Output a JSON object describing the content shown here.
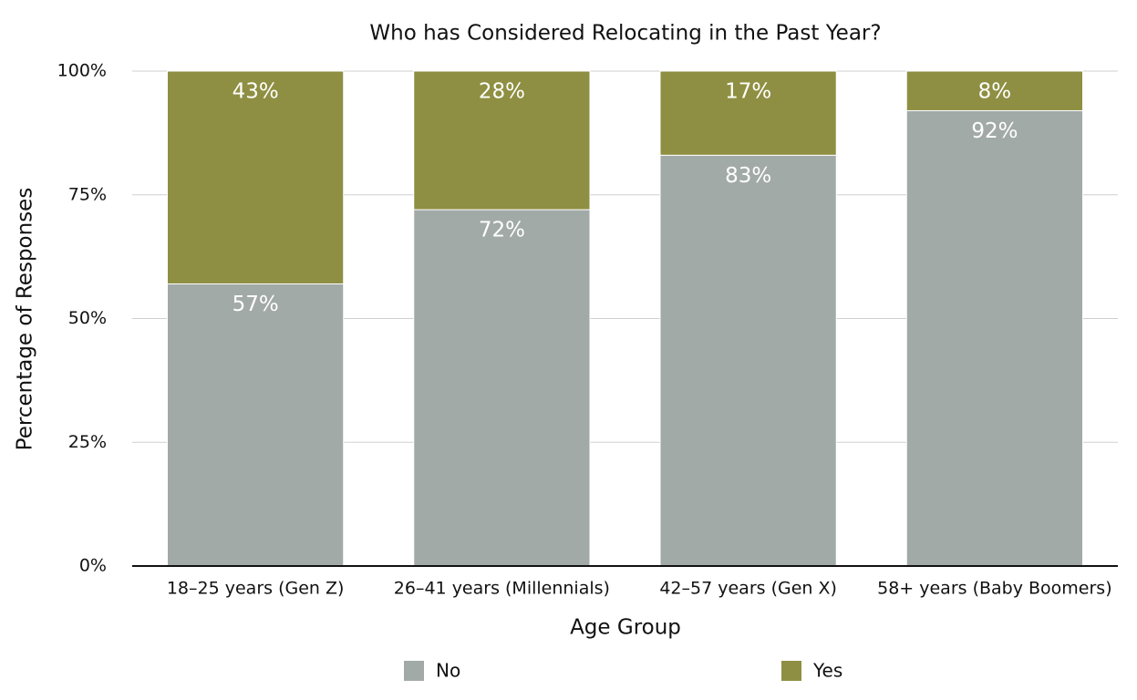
{
  "chart_data": {
    "type": "stacked_bar",
    "title": "Who has Considered Relocating in the Past Year?",
    "x_label": "Age Group",
    "y_label": "Percentage of Responses",
    "categories": [
      "18–25 years (Gen Z)",
      "26–41 years (Millennials)",
      "42–57 years (Gen X)",
      "58+ years (Baby Boomers)"
    ],
    "series": [
      {
        "name": "No",
        "color": "#a2aaa8",
        "values": [
          57,
          72,
          83,
          92
        ],
        "value_labels": [
          "57%",
          "72%",
          "83%",
          "92%"
        ]
      },
      {
        "name": "Yes",
        "color": "#8e8f42",
        "values": [
          43,
          28,
          17,
          8
        ],
        "value_labels": [
          "43%",
          "28%",
          "17%",
          "8%"
        ]
      }
    ],
    "ylim": [
      0,
      100
    ],
    "yticks": [
      {
        "value": 0,
        "label": "0%"
      },
      {
        "value": 25,
        "label": "25%"
      },
      {
        "value": 50,
        "label": "50%"
      },
      {
        "value": 75,
        "label": "75%"
      },
      {
        "value": 100,
        "label": "100%"
      }
    ],
    "grid": true,
    "legend": "bottom"
  }
}
